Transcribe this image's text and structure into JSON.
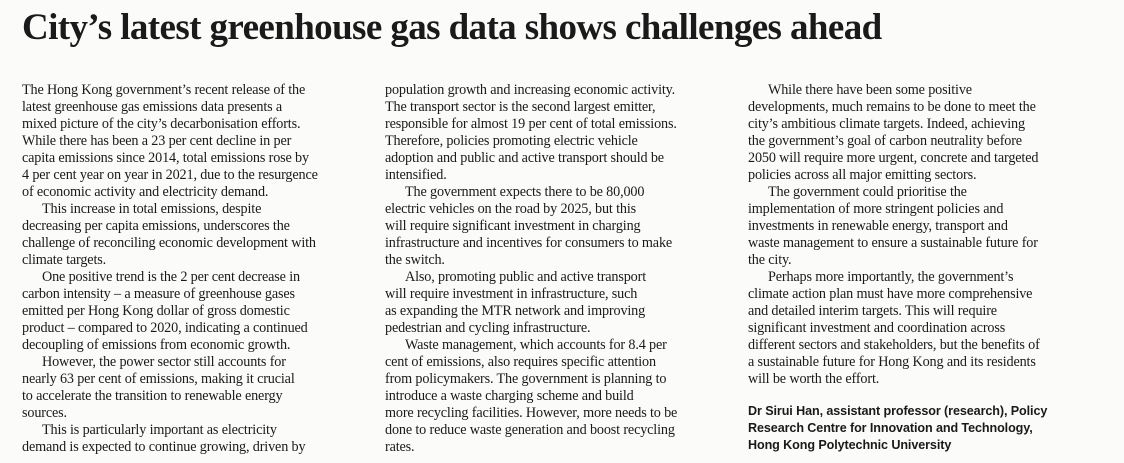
{
  "headline": "City’s latest greenhouse gas data shows challenges ahead",
  "columns": [
    {
      "paragraphs": [
        {
          "lines": [
            "The Hong Kong government’s recent release of the",
            "latest greenhouse gas emissions data presents a",
            "mixed picture of the city’s decarbonisation efforts.",
            "While there has been a 23 per cent decline in per",
            "capita emissions since 2014, total emissions rose by",
            "4 per cent year on year in 2021, due to the resurgence",
            "of economic activity and electricity demand."
          ]
        },
        {
          "lines": [
            "This increase in total emissions, despite",
            "decreasing per capita emissions, underscores the",
            "challenge of reconciling economic development with",
            "climate targets."
          ]
        },
        {
          "lines": [
            "One positive trend is the 2 per cent decrease in",
            "carbon intensity – a measure of greenhouse gases",
            "emitted per Hong Kong dollar of gross domestic",
            "product – compared to 2020, indicating a continued",
            "decoupling of emissions from economic growth."
          ]
        },
        {
          "lines": [
            "However, the power sector still accounts for",
            "nearly 63 per cent of emissions, making it crucial",
            "to accelerate the transition to renewable energy",
            "sources."
          ]
        },
        {
          "lines": [
            "This is particularly important as electricity",
            "demand is expected to continue growing, driven by"
          ]
        }
      ]
    },
    {
      "paragraphs": [
        {
          "lines": [
            "population growth and increasing economic activity.",
            "The transport sector is the second largest emitter,",
            "responsible for almost 19 per cent of total emissions.",
            "Therefore, policies promoting electric vehicle",
            "adoption and public and active transport should be",
            "intensified."
          ]
        },
        {
          "lines": [
            "The government expects there to be 80,000",
            "electric vehicles on the road by 2025, but this",
            "will require significant investment in charging",
            "infrastructure and incentives for consumers to make",
            "the switch."
          ]
        },
        {
          "lines": [
            "Also, promoting public and active transport",
            "will require investment in infrastructure, such",
            "as expanding the MTR network and improving",
            "pedestrian and cycling infrastructure."
          ]
        },
        {
          "lines": [
            "Waste management, which accounts for 8.4 per",
            "cent of emissions, also requires specific attention",
            "from policymakers. The government is planning to",
            "introduce a waste charging scheme and build",
            "more recycling facilities. However, more needs to be",
            "done to reduce waste generation and boost recycling",
            "rates."
          ]
        }
      ]
    },
    {
      "paragraphs": [
        {
          "lines": [
            "While there have been some positive",
            "developments, much remains to be done to meet the",
            "city’s ambitious climate targets. Indeed, achieving",
            "the government’s goal of carbon neutrality before",
            "2050 will require more urgent, concrete and targeted",
            "policies across all major emitting sectors."
          ]
        },
        {
          "lines": [
            "The government could prioritise the",
            "implementation of more stringent policies and",
            "investments in renewable energy, transport and",
            "waste management to ensure a sustainable future for",
            "the city."
          ]
        },
        {
          "lines": [
            "Perhaps more importantly, the government’s",
            "climate action plan must have more comprehensive",
            "and detailed interim targets. This will require",
            "significant investment and coordination across",
            "different sectors and stakeholders, but the benefits of",
            "a sustainable future for Hong Kong and its residents",
            "will be worth the effort."
          ]
        }
      ]
    }
  ],
  "byline": {
    "lines": [
      "Dr Sirui Han, assistant professor (research), Policy",
      "Research Centre for Innovation and Technology,",
      "Hong Kong Polytechnic University"
    ]
  }
}
